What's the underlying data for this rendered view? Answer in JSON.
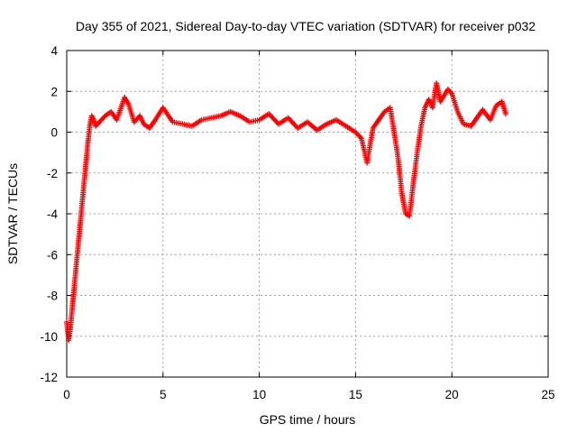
{
  "chart_data": {
    "type": "scatter",
    "title": "Day 355 of 2021, Sidereal Day-to-day VTEC variation (SDTVAR) for receiver p032",
    "xlabel": "GPS time / hours",
    "ylabel": "SDTVAR / TECUs",
    "xlim": [
      0,
      25
    ],
    "ylim": [
      -12,
      4
    ],
    "xticks": [
      0,
      5,
      10,
      15,
      20,
      25
    ],
    "yticks": [
      -12,
      -10,
      -8,
      -6,
      -4,
      -2,
      0,
      2,
      4
    ],
    "grid": true,
    "marker": "+",
    "series": [
      {
        "name": "SDTVAR",
        "color": "#ff0000",
        "x": [
          0.0,
          0.1,
          0.2,
          0.3,
          0.4,
          0.5,
          0.6,
          0.7,
          0.8,
          0.9,
          1.0,
          1.1,
          1.2,
          1.3,
          1.4,
          1.5,
          1.7,
          2.0,
          2.3,
          2.6,
          3.0,
          3.2,
          3.5,
          3.8,
          4.0,
          4.3,
          4.6,
          5.0,
          5.5,
          6.0,
          6.5,
          7.0,
          7.5,
          8.0,
          8.5,
          9.0,
          9.5,
          10.0,
          10.5,
          11.0,
          11.5,
          12.0,
          12.5,
          13.0,
          13.5,
          14.0,
          14.5,
          15.0,
          15.3,
          15.6,
          15.9,
          16.2,
          16.5,
          16.8,
          17.0,
          17.2,
          17.4,
          17.6,
          17.8,
          18.0,
          18.2,
          18.4,
          18.6,
          18.8,
          19.0,
          19.2,
          19.4,
          19.6,
          19.8,
          20.0,
          20.3,
          20.6,
          21.0,
          21.3,
          21.6,
          22.0,
          22.3,
          22.6,
          22.8
        ],
        "y": [
          -9.3,
          -10.2,
          -9.5,
          -8.5,
          -7.5,
          -6.5,
          -5.5,
          -4.5,
          -3.5,
          -2.5,
          -1.5,
          -0.5,
          0.3,
          0.8,
          0.6,
          0.3,
          0.5,
          0.8,
          1.0,
          0.6,
          1.7,
          1.4,
          0.5,
          0.8,
          0.4,
          0.2,
          0.6,
          1.2,
          0.5,
          0.4,
          0.3,
          0.6,
          0.7,
          0.8,
          1.0,
          0.8,
          0.5,
          0.6,
          0.9,
          0.4,
          0.7,
          0.2,
          0.5,
          0.1,
          0.4,
          0.6,
          0.3,
          0.0,
          -0.3,
          -1.5,
          0.2,
          0.6,
          1.0,
          1.2,
          0.0,
          -1.2,
          -3.0,
          -4.0,
          -4.1,
          -2.5,
          -1.0,
          0.3,
          1.2,
          1.6,
          1.2,
          2.4,
          1.5,
          1.8,
          2.1,
          1.9,
          1.0,
          0.4,
          0.3,
          0.7,
          1.1,
          0.6,
          1.3,
          1.5,
          0.9
        ]
      }
    ]
  }
}
